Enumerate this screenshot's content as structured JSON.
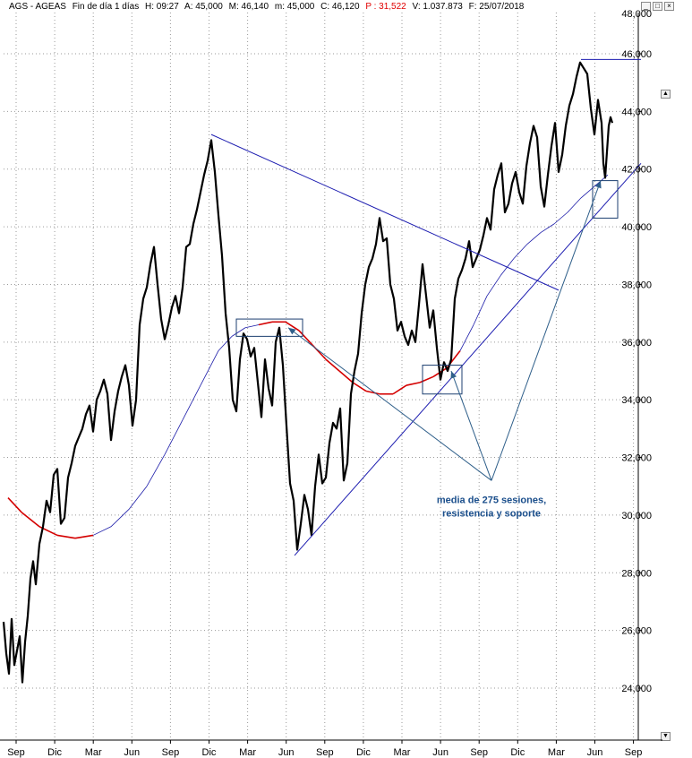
{
  "header": {
    "symbol": "AGS - AGEAS",
    "period": "Fin de día 1 días",
    "time": "H: 09:27",
    "open": "A: 45,000",
    "high": "M: 46,140",
    "low": "m: 45,000",
    "close": "C: 46,120",
    "pct": "P : 31,522",
    "volume": "V: 1.037.873",
    "date": "F: 25/07/2018"
  },
  "window_buttons": {
    "minimize": "_",
    "maximize": "□",
    "close": "×"
  },
  "chart_data": {
    "type": "line",
    "title": "AGS - AGEAS",
    "y_ticks": [
      "46,000",
      "44,000",
      "42,000",
      "40,000",
      "38,000",
      "36,000",
      "34,000",
      "32,000",
      "30,000",
      "28,000",
      "26,000",
      "24,000"
    ],
    "y_top_partial_label": "48,000",
    "ylim": [
      23.0,
      48.2
    ],
    "x_ticks": [
      "Sep",
      "Dic",
      "Mar",
      "Jun",
      "Sep",
      "Dic",
      "Mar",
      "Jun",
      "Sep",
      "Dic",
      "Mar",
      "Jun",
      "Sep",
      "Dic",
      "Mar",
      "Jun",
      "Sep"
    ],
    "series": [
      {
        "name": "",
        "style": "price",
        "points": [
          [
            0,
            26.3
          ],
          [
            3,
            25.2
          ],
          [
            6,
            24.5
          ],
          [
            9,
            26.4
          ],
          [
            12,
            24.8
          ],
          [
            15,
            25.3
          ],
          [
            18,
            25.8
          ],
          [
            21,
            24.2
          ],
          [
            24,
            25.6
          ],
          [
            27,
            26.5
          ],
          [
            30,
            27.8
          ],
          [
            33,
            28.4
          ],
          [
            36,
            27.6
          ],
          [
            40,
            29.0
          ],
          [
            44,
            29.6
          ],
          [
            48,
            30.5
          ],
          [
            52,
            30.1
          ],
          [
            56,
            31.4
          ],
          [
            60,
            31.6
          ],
          [
            64,
            29.7
          ],
          [
            68,
            29.9
          ],
          [
            72,
            31.3
          ],
          [
            76,
            31.8
          ],
          [
            80,
            32.4
          ],
          [
            84,
            32.7
          ],
          [
            88,
            33.0
          ],
          [
            92,
            33.5
          ],
          [
            96,
            33.8
          ],
          [
            100,
            32.9
          ],
          [
            104,
            34.0
          ],
          [
            108,
            34.3
          ],
          [
            112,
            34.7
          ],
          [
            116,
            34.2
          ],
          [
            120,
            32.6
          ],
          [
            124,
            33.6
          ],
          [
            128,
            34.3
          ],
          [
            132,
            34.8
          ],
          [
            136,
            35.2
          ],
          [
            140,
            34.5
          ],
          [
            144,
            33.1
          ],
          [
            148,
            34.0
          ],
          [
            152,
            36.6
          ],
          [
            156,
            37.5
          ],
          [
            160,
            37.9
          ],
          [
            164,
            38.7
          ],
          [
            168,
            39.3
          ],
          [
            172,
            38.0
          ],
          [
            176,
            36.8
          ],
          [
            180,
            36.1
          ],
          [
            184,
            36.6
          ],
          [
            188,
            37.2
          ],
          [
            192,
            37.6
          ],
          [
            196,
            37.0
          ],
          [
            200,
            37.9
          ],
          [
            204,
            39.3
          ],
          [
            208,
            39.4
          ],
          [
            212,
            40.1
          ],
          [
            216,
            40.6
          ],
          [
            220,
            41.2
          ],
          [
            224,
            41.8
          ],
          [
            228,
            42.3
          ],
          [
            232,
            43.0
          ],
          [
            236,
            41.9
          ],
          [
            240,
            40.4
          ],
          [
            244,
            39.0
          ],
          [
            248,
            37.0
          ],
          [
            252,
            35.8
          ],
          [
            256,
            34.0
          ],
          [
            260,
            33.6
          ],
          [
            264,
            35.4
          ],
          [
            268,
            36.3
          ],
          [
            272,
            36.1
          ],
          [
            276,
            35.5
          ],
          [
            280,
            35.8
          ],
          [
            284,
            34.6
          ],
          [
            288,
            33.4
          ],
          [
            292,
            35.4
          ],
          [
            296,
            34.4
          ],
          [
            300,
            33.8
          ],
          [
            304,
            36.0
          ],
          [
            308,
            36.5
          ],
          [
            312,
            35.2
          ],
          [
            316,
            33.1
          ],
          [
            320,
            31.1
          ],
          [
            324,
            30.5
          ],
          [
            328,
            28.8
          ],
          [
            332,
            29.7
          ],
          [
            336,
            30.7
          ],
          [
            340,
            30.2
          ],
          [
            344,
            29.3
          ],
          [
            348,
            31.0
          ],
          [
            352,
            32.1
          ],
          [
            356,
            31.1
          ],
          [
            360,
            31.3
          ],
          [
            364,
            32.5
          ],
          [
            368,
            33.2
          ],
          [
            372,
            33.0
          ],
          [
            376,
            33.7
          ],
          [
            380,
            31.2
          ],
          [
            384,
            31.8
          ],
          [
            388,
            34.2
          ],
          [
            392,
            35.0
          ],
          [
            396,
            35.6
          ],
          [
            400,
            37.0
          ],
          [
            404,
            38.0
          ],
          [
            408,
            38.6
          ],
          [
            412,
            38.9
          ],
          [
            416,
            39.4
          ],
          [
            420,
            40.3
          ],
          [
            424,
            39.5
          ],
          [
            428,
            39.6
          ],
          [
            432,
            38.0
          ],
          [
            436,
            37.5
          ],
          [
            440,
            36.4
          ],
          [
            444,
            36.7
          ],
          [
            448,
            36.2
          ],
          [
            452,
            35.9
          ],
          [
            456,
            36.4
          ],
          [
            460,
            36.0
          ],
          [
            464,
            37.3
          ],
          [
            468,
            38.7
          ],
          [
            472,
            37.6
          ],
          [
            476,
            36.5
          ],
          [
            480,
            37.1
          ],
          [
            484,
            35.8
          ],
          [
            488,
            34.7
          ],
          [
            492,
            35.3
          ],
          [
            496,
            35.0
          ],
          [
            500,
            35.4
          ],
          [
            504,
            37.5
          ],
          [
            508,
            38.2
          ],
          [
            512,
            38.5
          ],
          [
            516,
            38.9
          ],
          [
            520,
            39.5
          ],
          [
            524,
            38.6
          ],
          [
            528,
            38.9
          ],
          [
            532,
            39.2
          ],
          [
            536,
            39.7
          ],
          [
            540,
            40.3
          ],
          [
            544,
            39.9
          ],
          [
            548,
            41.3
          ],
          [
            552,
            41.8
          ],
          [
            556,
            42.2
          ],
          [
            560,
            40.5
          ],
          [
            564,
            40.8
          ],
          [
            568,
            41.5
          ],
          [
            572,
            41.9
          ],
          [
            576,
            41.2
          ],
          [
            580,
            40.8
          ],
          [
            584,
            42.1
          ],
          [
            588,
            42.9
          ],
          [
            592,
            43.5
          ],
          [
            596,
            43.1
          ],
          [
            600,
            41.4
          ],
          [
            604,
            40.7
          ],
          [
            608,
            41.8
          ],
          [
            612,
            42.8
          ],
          [
            616,
            43.6
          ],
          [
            620,
            41.9
          ],
          [
            624,
            42.5
          ],
          [
            628,
            43.5
          ],
          [
            632,
            44.2
          ],
          [
            636,
            44.6
          ],
          [
            640,
            45.2
          ],
          [
            644,
            45.7
          ],
          [
            648,
            45.5
          ],
          [
            652,
            45.3
          ],
          [
            656,
            44.1
          ],
          [
            660,
            43.2
          ],
          [
            664,
            44.4
          ],
          [
            668,
            43.6
          ],
          [
            670,
            42.2
          ],
          [
            672,
            41.7
          ],
          [
            674,
            42.6
          ],
          [
            676,
            43.5
          ],
          [
            678,
            43.8
          ],
          [
            680,
            43.6
          ]
        ]
      },
      {
        "name": "",
        "style": "moving-average",
        "points": [
          [
            5,
            30.6
          ],
          [
            20,
            30.1
          ],
          [
            40,
            29.6
          ],
          [
            60,
            29.3
          ],
          [
            80,
            29.2
          ],
          [
            100,
            29.3
          ],
          [
            120,
            29.6
          ],
          [
            140,
            30.2
          ],
          [
            160,
            31.0
          ],
          [
            180,
            32.1
          ],
          [
            200,
            33.3
          ],
          [
            220,
            34.5
          ],
          [
            240,
            35.7
          ],
          [
            255,
            36.2
          ],
          [
            270,
            36.5
          ],
          [
            285,
            36.6
          ],
          [
            300,
            36.7
          ],
          [
            315,
            36.7
          ],
          [
            330,
            36.4
          ],
          [
            345,
            35.9
          ],
          [
            360,
            35.4
          ],
          [
            375,
            35.0
          ],
          [
            390,
            34.6
          ],
          [
            405,
            34.3
          ],
          [
            420,
            34.2
          ],
          [
            435,
            34.2
          ],
          [
            450,
            34.5
          ],
          [
            465,
            34.6
          ],
          [
            480,
            34.8
          ],
          [
            495,
            35.1
          ],
          [
            510,
            35.7
          ],
          [
            525,
            36.6
          ],
          [
            540,
            37.6
          ],
          [
            555,
            38.3
          ],
          [
            570,
            38.9
          ],
          [
            585,
            39.4
          ],
          [
            600,
            39.8
          ],
          [
            615,
            40.1
          ],
          [
            630,
            40.5
          ],
          [
            645,
            41.0
          ],
          [
            660,
            41.4
          ],
          [
            675,
            41.8
          ]
        ]
      }
    ],
    "trendlines": [
      {
        "from": [
          232,
          43.2
        ],
        "to": [
          620,
          37.8
        ]
      },
      {
        "from": [
          325,
          28.6
        ],
        "to": [
          712,
          42.2
        ]
      },
      {
        "from": [
          645,
          45.8
        ],
        "to": [
          712,
          45.8
        ]
      }
    ],
    "boxes": [
      {
        "x": [
          260,
          334
        ],
        "y": [
          36.2,
          36.8
        ]
      },
      {
        "x": [
          468,
          512
        ],
        "y": [
          34.2,
          35.2
        ]
      },
      {
        "x": [
          658,
          686
        ],
        "y": [
          40.3,
          41.6
        ]
      }
    ],
    "annotation": {
      "lines": [
        "media de 275 sesiones,",
        "resistencia y soporte"
      ],
      "anchor": [
        545,
        31.2
      ],
      "arrows_to": [
        [
          318,
          36.5
        ],
        [
          500,
          35.0
        ],
        [
          667,
          41.6
        ]
      ]
    }
  }
}
